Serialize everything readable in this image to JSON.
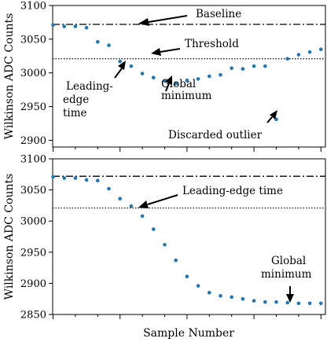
{
  "chart_data": [
    {
      "type": "scatter",
      "ylabel": "Wilkinson ADC Counts",
      "xlabel": "",
      "ylim": [
        2890,
        3100
      ],
      "yticks": [
        2900,
        2950,
        3000,
        3050,
        3100
      ],
      "point_color": "#1f77b4",
      "hlines": [
        {
          "y": 3072,
          "style": "dashdot",
          "label": "Baseline"
        },
        {
          "y": 3021,
          "style": "dotted",
          "label": "Threshold"
        }
      ],
      "x": [
        0,
        1,
        2,
        3,
        4,
        5,
        6,
        7,
        8,
        9,
        10,
        11,
        12,
        13,
        14,
        15,
        16,
        17,
        18,
        19,
        20,
        21,
        22,
        23,
        24
      ],
      "y": [
        3071,
        3069,
        3069,
        3067,
        3046,
        3041,
        3017,
        3010,
        2999,
        2993,
        2988,
        2984,
        2989,
        2991,
        2995,
        2997,
        3007,
        3006,
        3010,
        3010,
        2931,
        3021,
        3027,
        3031,
        3035
      ],
      "annotations": [
        {
          "text": "Baseline",
          "point_x": 7.5,
          "point_y": 3072
        },
        {
          "text": "Threshold",
          "point_x": 8.8,
          "point_y": 3021
        },
        {
          "text": "Leading-edge time",
          "point_x": 6.7,
          "point_y": 3009
        },
        {
          "text": "Global minimum",
          "point_x": 10.7,
          "point_y": 2986
        },
        {
          "text": "Discarded outlier",
          "point_x": 20,
          "point_y": 2934
        }
      ]
    },
    {
      "type": "scatter",
      "ylabel": "Wilkinson ADC Counts",
      "xlabel": "Sample Number",
      "ylim": [
        2850,
        3100
      ],
      "yticks": [
        2850,
        2900,
        2950,
        3000,
        3050,
        3100
      ],
      "point_color": "#1f77b4",
      "hlines": [
        {
          "y": 3072,
          "style": "dashdot"
        },
        {
          "y": 3021,
          "style": "dotted"
        }
      ],
      "x": [
        0,
        1,
        2,
        3,
        4,
        5,
        6,
        7,
        8,
        9,
        10,
        11,
        12,
        13,
        14,
        15,
        16,
        17,
        18,
        19,
        20,
        21,
        22,
        23,
        24
      ],
      "y": [
        3071,
        3069,
        3069,
        3066,
        3065,
        3052,
        3036,
        3024,
        3008,
        2987,
        2962,
        2937,
        2911,
        2896,
        2885,
        2880,
        2878,
        2875,
        2872,
        2870,
        2870,
        2869,
        2868,
        2868,
        2868
      ],
      "annotations": [
        {
          "text": "Leading-edge time",
          "point_x": 7.2,
          "point_y": 3024
        },
        {
          "text": "Global minimum",
          "point_x": 21,
          "point_y": 2871
        }
      ]
    }
  ]
}
